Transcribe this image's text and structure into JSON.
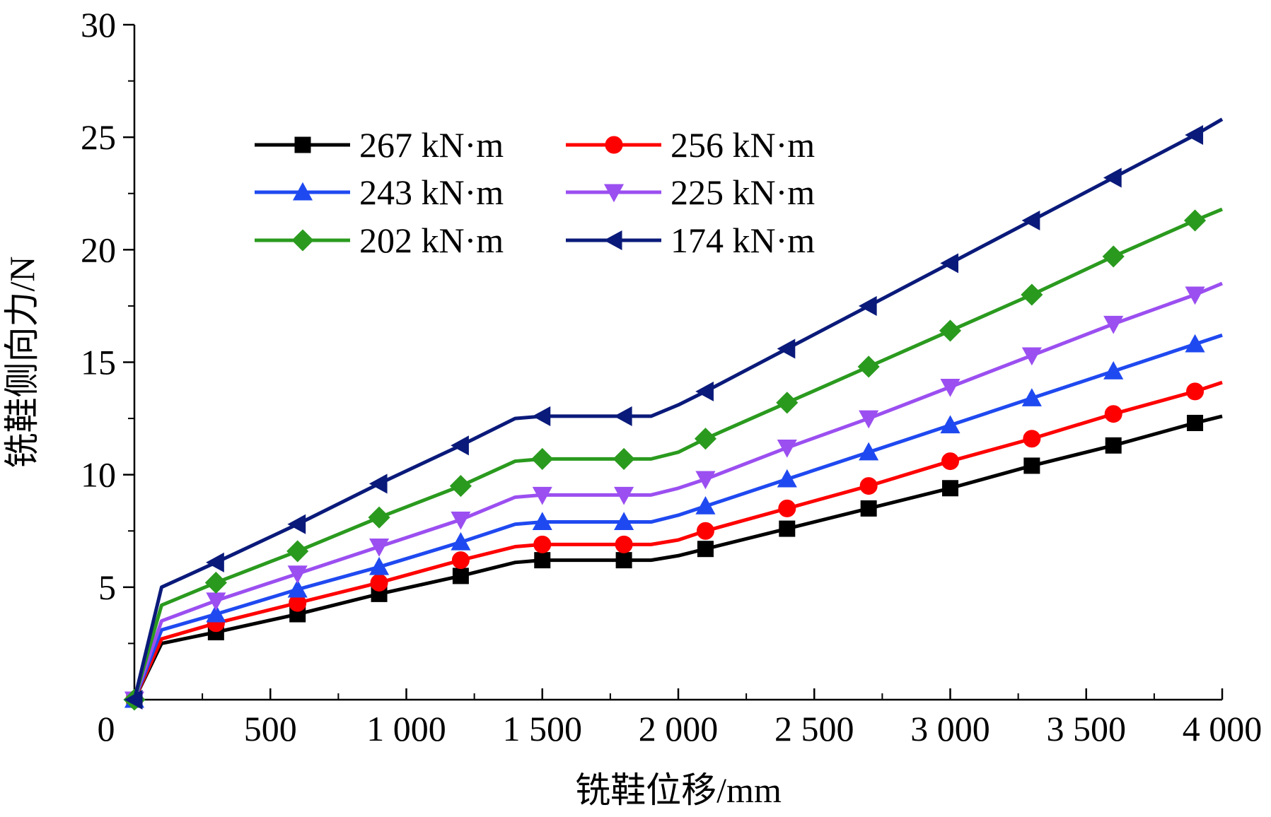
{
  "chart_data": {
    "type": "line",
    "title": "",
    "xlabel": "铣鞋位移/mm",
    "ylabel": "铣鞋侧向力/N",
    "xlim": [
      0,
      4000
    ],
    "ylim": [
      0,
      30
    ],
    "xticks": [
      0,
      500,
      1000,
      1500,
      2000,
      2500,
      3000,
      3500,
      4000
    ],
    "xtick_labels": [
      "0",
      "500",
      "1 000",
      "1 500",
      "2 000",
      "2 500",
      "3 000",
      "3 500",
      "4 000"
    ],
    "yticks": [
      5,
      10,
      15,
      20,
      25,
      30
    ],
    "ytick_labels": [
      "5",
      "10",
      "15",
      "20",
      "25",
      "30"
    ],
    "grid": false,
    "legend_position": "top-left",
    "x": [
      0,
      100,
      300,
      600,
      900,
      1200,
      1400,
      1500,
      1800,
      1900,
      2000,
      2100,
      2400,
      2700,
      3000,
      3300,
      3600,
      3900,
      4000
    ],
    "marker_x": [
      0,
      300,
      600,
      900,
      1200,
      1500,
      1800,
      2100,
      2400,
      2700,
      3000,
      3300,
      3600,
      3900
    ],
    "series": [
      {
        "name": "267 kN·m",
        "color": "#000000",
        "marker": "square",
        "values": [
          0,
          2.5,
          3.0,
          3.8,
          4.7,
          5.5,
          6.1,
          6.2,
          6.2,
          6.2,
          6.4,
          6.7,
          7.6,
          8.5,
          9.4,
          10.4,
          11.3,
          12.3,
          12.6
        ]
      },
      {
        "name": "256 kN·m",
        "color": "#ff0000",
        "marker": "circle",
        "values": [
          0,
          2.7,
          3.4,
          4.3,
          5.2,
          6.2,
          6.8,
          6.9,
          6.9,
          6.9,
          7.1,
          7.5,
          8.5,
          9.5,
          10.6,
          11.6,
          12.7,
          13.7,
          14.1
        ]
      },
      {
        "name": "243 kN·m",
        "color": "#1f49f0",
        "marker": "triangle-up",
        "values": [
          0,
          3.1,
          3.8,
          4.9,
          5.9,
          7.0,
          7.8,
          7.9,
          7.9,
          7.9,
          8.2,
          8.6,
          9.8,
          11.0,
          12.2,
          13.4,
          14.6,
          15.8,
          16.2
        ]
      },
      {
        "name": "225 kN·m",
        "color": "#9b4ff0",
        "marker": "triangle-down",
        "values": [
          0,
          3.5,
          4.4,
          5.6,
          6.8,
          8.0,
          9.0,
          9.1,
          9.1,
          9.1,
          9.4,
          9.8,
          11.2,
          12.5,
          13.9,
          15.3,
          16.7,
          18.0,
          18.5
        ]
      },
      {
        "name": "202 kN·m",
        "color": "#2a9a1e",
        "marker": "diamond",
        "values": [
          0,
          4.2,
          5.2,
          6.6,
          8.1,
          9.5,
          10.6,
          10.7,
          10.7,
          10.7,
          11.0,
          11.6,
          13.2,
          14.8,
          16.4,
          18.0,
          19.7,
          21.3,
          21.8
        ]
      },
      {
        "name": "174 kN·m",
        "color": "#0a1a7a",
        "marker": "triangle-left",
        "values": [
          0,
          5.0,
          6.1,
          7.8,
          9.6,
          11.3,
          12.5,
          12.6,
          12.6,
          12.6,
          13.1,
          13.7,
          15.6,
          17.5,
          19.4,
          21.3,
          23.2,
          25.1,
          25.8
        ]
      }
    ]
  }
}
